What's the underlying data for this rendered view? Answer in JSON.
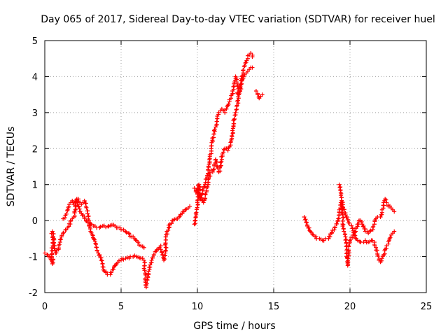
{
  "chart_data": {
    "type": "scatter",
    "title": "Day 065 of 2017, Sidereal Day-to-day VTEC variation (SDTVAR) for receiver huel",
    "xlabel": "GPS time / hours",
    "ylabel": "SDTVAR / TECUs",
    "xlim": [
      0,
      25
    ],
    "ylim": [
      -2,
      5
    ],
    "xticks": [
      0,
      5,
      10,
      15,
      20,
      25
    ],
    "yticks": [
      -2,
      -1,
      0,
      1,
      2,
      3,
      4,
      5
    ],
    "grid": true,
    "marker": "+",
    "color": "#ff0000",
    "segments": [
      {
        "name": "seg-a",
        "points": [
          [
            0.0,
            -0.9
          ],
          [
            0.2,
            -0.95
          ],
          [
            0.45,
            -1.1
          ],
          [
            0.5,
            -1.2
          ],
          [
            0.5,
            -0.3
          ],
          [
            0.6,
            -0.5
          ],
          [
            0.7,
            -0.9
          ],
          [
            0.9,
            -0.8
          ],
          [
            1.0,
            -0.6
          ],
          [
            1.1,
            -0.45
          ],
          [
            1.2,
            -0.35
          ],
          [
            1.4,
            -0.25
          ],
          [
            1.5,
            -0.2
          ],
          [
            1.7,
            0.0
          ],
          [
            1.8,
            0.05
          ],
          [
            1.9,
            0.1
          ],
          [
            2.0,
            0.3
          ],
          [
            2.1,
            0.6
          ],
          [
            2.2,
            0.4
          ],
          [
            2.4,
            0.2
          ],
          [
            2.6,
            0.1
          ],
          [
            2.7,
            0.0
          ],
          [
            2.9,
            -0.15
          ],
          [
            3.0,
            -0.3
          ],
          [
            3.2,
            -0.5
          ],
          [
            3.5,
            -0.9
          ],
          [
            3.7,
            -1.1
          ],
          [
            3.9,
            -1.4
          ],
          [
            4.1,
            -1.5
          ],
          [
            4.3,
            -1.5
          ],
          [
            4.5,
            -1.35
          ],
          [
            4.7,
            -1.2
          ],
          [
            5.0,
            -1.1
          ],
          [
            5.3,
            -1.05
          ],
          [
            5.6,
            -1.0
          ],
          [
            6.0,
            -1.0
          ],
          [
            6.3,
            -1.05
          ],
          [
            6.5,
            -1.1
          ],
          [
            6.6,
            -1.5
          ],
          [
            6.65,
            -1.85
          ],
          [
            6.8,
            -1.5
          ],
          [
            7.0,
            -1.1
          ],
          [
            7.3,
            -0.85
          ],
          [
            7.6,
            -0.7
          ]
        ]
      },
      {
        "name": "seg-b",
        "points": [
          [
            1.2,
            0.05
          ],
          [
            1.35,
            0.15
          ],
          [
            1.5,
            0.3
          ],
          [
            1.6,
            0.45
          ],
          [
            1.7,
            0.5
          ],
          [
            1.8,
            0.55
          ],
          [
            1.9,
            0.45
          ],
          [
            2.0,
            0.5
          ],
          [
            2.1,
            0.55
          ],
          [
            2.2,
            0.6
          ],
          [
            2.3,
            0.5
          ],
          [
            2.4,
            0.45
          ],
          [
            2.5,
            0.5
          ],
          [
            2.6,
            0.55
          ],
          [
            2.7,
            0.4
          ],
          [
            2.8,
            0.2
          ],
          [
            2.9,
            0.0
          ],
          [
            3.0,
            -0.1
          ],
          [
            3.2,
            -0.15
          ],
          [
            3.4,
            -0.2
          ],
          [
            3.6,
            -0.2
          ],
          [
            3.8,
            -0.15
          ],
          [
            4.0,
            -0.18
          ],
          [
            4.2,
            -0.15
          ],
          [
            4.4,
            -0.12
          ],
          [
            4.6,
            -0.15
          ],
          [
            4.8,
            -0.2
          ],
          [
            5.0,
            -0.25
          ],
          [
            5.3,
            -0.3
          ],
          [
            5.5,
            -0.35
          ],
          [
            5.7,
            -0.45
          ],
          [
            5.9,
            -0.5
          ],
          [
            6.1,
            -0.6
          ],
          [
            6.3,
            -0.7
          ],
          [
            6.5,
            -0.75
          ]
        ]
      },
      {
        "name": "seg-c",
        "points": [
          [
            7.6,
            -0.8
          ],
          [
            7.8,
            -1.1
          ],
          [
            7.9,
            -0.9
          ],
          [
            8.0,
            -0.3
          ],
          [
            8.2,
            -0.1
          ],
          [
            8.4,
            0.0
          ],
          [
            8.6,
            0.05
          ],
          [
            8.8,
            0.1
          ],
          [
            9.0,
            0.2
          ],
          [
            9.2,
            0.3
          ],
          [
            9.4,
            0.35
          ],
          [
            9.5,
            0.4
          ]
        ]
      },
      {
        "name": "seg-d",
        "points": [
          [
            9.8,
            0.9
          ],
          [
            9.9,
            0.8
          ],
          [
            10.0,
            0.9
          ],
          [
            10.1,
            0.7
          ],
          [
            10.2,
            0.6
          ],
          [
            10.4,
            0.5
          ],
          [
            10.5,
            0.6
          ],
          [
            10.6,
            0.8
          ],
          [
            10.7,
            1.0
          ],
          [
            10.8,
            1.3
          ],
          [
            10.9,
            1.4
          ],
          [
            11.0,
            1.35
          ],
          [
            11.1,
            1.55
          ],
          [
            11.2,
            1.7
          ],
          [
            11.3,
            1.5
          ],
          [
            11.4,
            1.35
          ],
          [
            11.5,
            1.5
          ],
          [
            11.6,
            1.7
          ],
          [
            11.7,
            1.9
          ],
          [
            11.8,
            2.0
          ],
          [
            11.9,
            2.0
          ],
          [
            12.0,
            1.95
          ],
          [
            12.1,
            2.05
          ],
          [
            12.2,
            2.2
          ],
          [
            12.3,
            2.5
          ],
          [
            12.4,
            2.8
          ],
          [
            12.5,
            3.0
          ],
          [
            12.6,
            3.2
          ],
          [
            12.7,
            3.4
          ],
          [
            12.8,
            3.6
          ],
          [
            12.9,
            3.8
          ],
          [
            13.0,
            3.95
          ],
          [
            13.1,
            4.05
          ],
          [
            13.2,
            4.1
          ],
          [
            13.3,
            4.15
          ],
          [
            13.4,
            4.2
          ],
          [
            13.5,
            4.25
          ],
          [
            13.6,
            4.25
          ]
        ]
      },
      {
        "name": "seg-e",
        "points": [
          [
            9.8,
            -0.1
          ],
          [
            9.9,
            0.2
          ],
          [
            10.0,
            0.5
          ],
          [
            10.1,
            1.0
          ],
          [
            10.2,
            0.6
          ],
          [
            10.5,
            1.0
          ],
          [
            10.7,
            1.3
          ],
          [
            10.8,
            1.6
          ],
          [
            10.9,
            2.0
          ],
          [
            11.0,
            2.2
          ],
          [
            11.1,
            2.5
          ],
          [
            11.2,
            2.6
          ],
          [
            11.3,
            2.9
          ],
          [
            11.4,
            3.0
          ],
          [
            11.5,
            3.05
          ],
          [
            11.6,
            3.1
          ],
          [
            11.7,
            3.05
          ],
          [
            11.8,
            3.0
          ],
          [
            11.9,
            3.1
          ],
          [
            12.0,
            3.2
          ],
          [
            12.1,
            3.3
          ],
          [
            12.2,
            3.4
          ],
          [
            12.3,
            3.6
          ],
          [
            12.4,
            3.8
          ],
          [
            12.5,
            4.0
          ],
          [
            12.6,
            3.8
          ],
          [
            12.7,
            3.5
          ],
          [
            12.8,
            3.6
          ],
          [
            12.9,
            3.9
          ],
          [
            13.0,
            4.1
          ],
          [
            13.1,
            4.3
          ],
          [
            13.2,
            4.4
          ],
          [
            13.3,
            4.5
          ],
          [
            13.4,
            4.6
          ],
          [
            13.5,
            4.65
          ],
          [
            13.6,
            4.55
          ]
        ]
      },
      {
        "name": "seg-f",
        "points": [
          [
            13.85,
            3.6
          ],
          [
            13.95,
            3.5
          ],
          [
            14.05,
            3.4
          ],
          [
            14.15,
            3.45
          ],
          [
            14.25,
            3.5
          ]
        ]
      },
      {
        "name": "seg-g",
        "points": [
          [
            17.0,
            0.1
          ],
          [
            17.2,
            -0.15
          ],
          [
            17.4,
            -0.3
          ],
          [
            17.6,
            -0.4
          ],
          [
            17.8,
            -0.5
          ],
          [
            18.0,
            -0.5
          ],
          [
            18.2,
            -0.55
          ],
          [
            18.4,
            -0.5
          ],
          [
            18.6,
            -0.5
          ],
          [
            18.8,
            -0.35
          ],
          [
            19.0,
            -0.2
          ],
          [
            19.2,
            0.0
          ],
          [
            19.3,
            0.3
          ],
          [
            19.4,
            0.5
          ],
          [
            19.5,
            0.2
          ],
          [
            19.6,
            -0.3
          ],
          [
            19.7,
            -0.45
          ],
          [
            19.8,
            -0.7
          ],
          [
            19.85,
            -1.25
          ],
          [
            19.9,
            -0.85
          ],
          [
            20.0,
            -0.6
          ],
          [
            20.2,
            -0.4
          ],
          [
            20.4,
            -0.2
          ],
          [
            20.6,
            0.0
          ],
          [
            20.7,
            0.0
          ],
          [
            20.8,
            -0.1
          ],
          [
            21.0,
            -0.3
          ],
          [
            21.2,
            -0.35
          ],
          [
            21.3,
            -0.3
          ],
          [
            21.5,
            -0.25
          ],
          [
            21.6,
            -0.1
          ],
          [
            21.7,
            0.05
          ],
          [
            21.8,
            0.1
          ],
          [
            22.0,
            0.1
          ],
          [
            22.1,
            0.3
          ],
          [
            22.2,
            0.5
          ],
          [
            22.3,
            0.6
          ],
          [
            22.4,
            0.5
          ],
          [
            22.5,
            0.4
          ],
          [
            22.7,
            0.35
          ],
          [
            22.8,
            0.3
          ],
          [
            22.9,
            0.25
          ]
        ]
      },
      {
        "name": "seg-h",
        "points": [
          [
            19.3,
            1.0
          ],
          [
            19.4,
            0.7
          ],
          [
            19.5,
            0.4
          ],
          [
            20.5,
            -0.55
          ],
          [
            20.7,
            -0.6
          ],
          [
            20.9,
            -0.6
          ],
          [
            21.0,
            -0.55
          ],
          [
            21.2,
            -0.6
          ],
          [
            21.4,
            -0.55
          ],
          [
            21.6,
            -0.6
          ],
          [
            21.7,
            -0.75
          ],
          [
            21.8,
            -0.95
          ],
          [
            21.9,
            -1.1
          ],
          [
            22.0,
            -1.15
          ],
          [
            22.1,
            -1.05
          ],
          [
            22.2,
            -0.95
          ],
          [
            22.3,
            -0.8
          ],
          [
            22.4,
            -0.7
          ],
          [
            22.5,
            -0.65
          ],
          [
            22.6,
            -0.5
          ],
          [
            22.7,
            -0.4
          ],
          [
            22.8,
            -0.35
          ],
          [
            22.9,
            -0.3
          ]
        ]
      }
    ]
  }
}
